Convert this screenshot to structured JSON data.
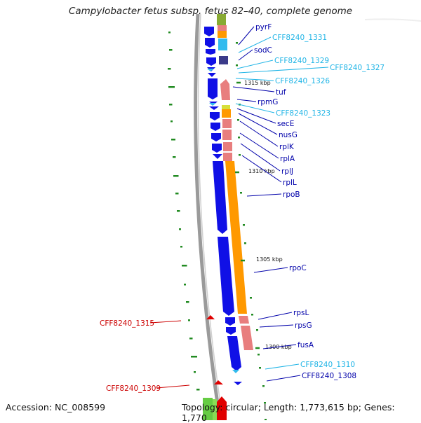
{
  "title": "Campylobacter fetus subsp. fetus 82–40, complete genome",
  "accession_text": "Accession: NC_008599",
  "topology_text": "Topology: circular; Length: 1,773,615 bp; Genes: 1,770",
  "colors": {
    "forward_cds": "#1010e6",
    "reverse_cds_orange": "#ff9900",
    "reverse_cds_pink": "#e87e7e",
    "rna_gene": "#33bbee",
    "label_blue": "#0000aa",
    "label_cyan": "#1fb4e6",
    "label_red": "#cc0000",
    "tick_green": "#228b22"
  },
  "gene_labels": [
    {
      "text": "pyrF",
      "color": "blue"
    },
    {
      "text": "CFF8240_1331",
      "color": "cyan"
    },
    {
      "text": "sodC",
      "color": "blue"
    },
    {
      "text": "CFF8240_1329",
      "color": "cyan"
    },
    {
      "text": "CFF8240_1327",
      "color": "cyan"
    },
    {
      "text": "CFF8240_1326",
      "color": "cyan"
    },
    {
      "text": "tuf",
      "color": "blue"
    },
    {
      "text": "rpmG",
      "color": "blue"
    },
    {
      "text": "CFF8240_1323",
      "color": "cyan"
    },
    {
      "text": "secE",
      "color": "blue"
    },
    {
      "text": "nusG",
      "color": "blue"
    },
    {
      "text": "rplK",
      "color": "blue"
    },
    {
      "text": "rplA",
      "color": "blue"
    },
    {
      "text": "rplJ",
      "color": "blue"
    },
    {
      "text": "rplL",
      "color": "blue"
    },
    {
      "text": "rpoB",
      "color": "blue"
    },
    {
      "text": "rpoC",
      "color": "blue"
    },
    {
      "text": "rpsL",
      "color": "blue"
    },
    {
      "text": "rpsG",
      "color": "blue"
    },
    {
      "text": "fusA",
      "color": "blue"
    },
    {
      "text": "CFF8240_1310",
      "color": "cyan"
    },
    {
      "text": "CFF8240_1308",
      "color": "blue"
    },
    {
      "text": "CFF8240_1315",
      "color": "red"
    },
    {
      "text": "CFF8240_1309",
      "color": "red"
    }
  ],
  "kbp_labels": [
    "1315 kbp",
    "1310 kbp",
    "1305 kbp",
    "1300 kbp"
  ]
}
